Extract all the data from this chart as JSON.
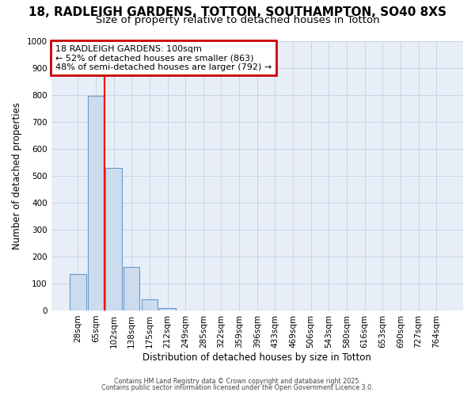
{
  "title_line1": "18, RADLEIGH GARDENS, TOTTON, SOUTHAMPTON, SO40 8XS",
  "title_line2": "Size of property relative to detached houses in Totton",
  "xlabel": "Distribution of detached houses by size in Totton",
  "ylabel": "Number of detached properties",
  "categories": [
    "28sqm",
    "65sqm",
    "102sqm",
    "138sqm",
    "175sqm",
    "212sqm",
    "249sqm",
    "285sqm",
    "322sqm",
    "359sqm",
    "396sqm",
    "433sqm",
    "469sqm",
    "506sqm",
    "543sqm",
    "580sqm",
    "616sqm",
    "653sqm",
    "690sqm",
    "727sqm",
    "764sqm"
  ],
  "values": [
    135,
    795,
    530,
    160,
    40,
    10,
    0,
    0,
    0,
    0,
    0,
    0,
    0,
    0,
    0,
    0,
    0,
    0,
    0,
    0,
    0
  ],
  "bar_color": "#ccdcee",
  "bar_edge_color": "#6699cc",
  "red_line_x": 1.5,
  "ylim": [
    0,
    1000
  ],
  "yticks": [
    0,
    100,
    200,
    300,
    400,
    500,
    600,
    700,
    800,
    900,
    1000
  ],
  "annotation_text_line1": "18 RADLEIGH GARDENS: 100sqm",
  "annotation_text_line2": "← 52% of detached houses are smaller (863)",
  "annotation_text_line3": "48% of semi-detached houses are larger (792) →",
  "annotation_box_color": "#ffffff",
  "annotation_box_edge_color": "#cc0000",
  "bg_color": "#ffffff",
  "plot_bg_color": "#e8eef8",
  "footer_line1": "Contains HM Land Registry data © Crown copyright and database right 2025.",
  "footer_line2": "Contains public sector information licensed under the Open Government Licence 3.0.",
  "grid_color": "#c8d4e4",
  "title1_fontsize": 11,
  "title2_fontsize": 9.5
}
